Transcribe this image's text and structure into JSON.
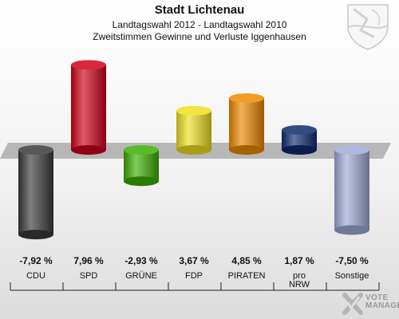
{
  "header": {
    "title": "Stadt Lichtenau",
    "subtitle1": "Landtagswahl 2012 - Landtagswahl 2010",
    "subtitle2": "Zweitstimmen Gewinne und Verluste Iggenhausen"
  },
  "brand": {
    "text": "VOTE\nMANAGER"
  },
  "chart_data": {
    "type": "bar",
    "title": "Stadt Lichtenau",
    "categories": [
      "CDU",
      "SPD",
      "GRÜNE",
      "FDP",
      "PIRATEN",
      "pro\nNRW",
      "Sonstige"
    ],
    "values": [
      -7.92,
      7.96,
      -2.93,
      3.67,
      4.85,
      1.87,
      -7.5
    ],
    "value_labels": [
      "-7,92 %",
      "7,96 %",
      "-2,93 %",
      "3,67 %",
      "4,85 %",
      "1,87 %",
      "-7,50 %"
    ],
    "colors": [
      "#3a3a3a",
      "#d0021b",
      "#3cb000",
      "#f0e020",
      "#f08a00",
      "#0f2a6e",
      "#9fabd6"
    ],
    "ylim": [
      -8.6,
      8.6
    ],
    "grid": false,
    "legend": "none"
  }
}
